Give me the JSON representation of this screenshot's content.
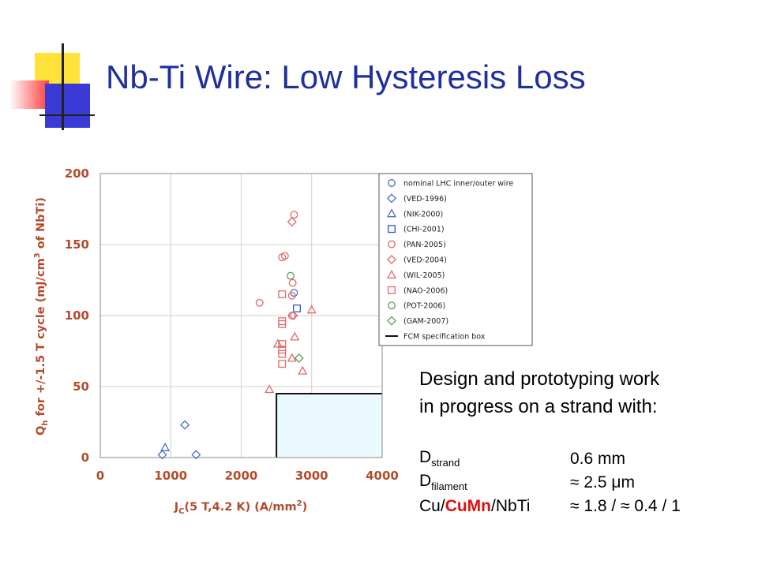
{
  "slide": {
    "title": "Nb-Ti Wire: Low Hysteresis Loss",
    "description": [
      "Design and prototyping work",
      "in progress on a strand with:"
    ],
    "specs": [
      {
        "base": "D",
        "sub": "strand",
        "value": "0.6 mm"
      },
      {
        "base": "D",
        "sub": "filament",
        "value": "≈ 2.5 μm"
      },
      {
        "parts": [
          "Cu/",
          "CuMn",
          "/NbTi"
        ],
        "value": "≈ 1.8 / ≈ 0.4 / 1"
      }
    ],
    "colors": {
      "title": "#1f2f9e",
      "highlight": "#e01010"
    }
  },
  "chart_data": {
    "type": "scatter",
    "ylabel_main": "Q",
    "ylabel_sub": "h",
    "ylabel_mid": " for +/-1.5 T cycle (mJ/cm",
    "ylabel_sup": "3",
    "ylabel_end": " of NbTi)",
    "xlabel_main": "J",
    "xlabel_sub": "C",
    "xlabel_mid": "(5 T,4.2 K) (A/mm",
    "xlabel_sup": "2",
    "xlabel_end": ")",
    "xlim": [
      0,
      4000
    ],
    "ylim": [
      0,
      200
    ],
    "xticks": [
      "0",
      "1000",
      "2000",
      "3000",
      "4000"
    ],
    "yticks": [
      "0",
      "50",
      "100",
      "150",
      "200"
    ],
    "grid": true,
    "legend_position": "top-right",
    "spec_box": {
      "label": "FCM specification box",
      "x_min": 2500,
      "y_max": 45
    },
    "series": [
      {
        "name": "nominal LHC inner/outer wire",
        "marker": "circle",
        "color": "#4a6cc9",
        "points": [
          [
            2750,
            116
          ]
        ]
      },
      {
        "name": "(VED-1996)",
        "marker": "diamond",
        "color": "#4a6cc9",
        "points": [
          [
            1200,
            23
          ],
          [
            880,
            2
          ],
          [
            1360,
            2
          ]
        ]
      },
      {
        "name": "(NIK-2000)",
        "marker": "triangle",
        "color": "#4a6cc9",
        "points": [
          [
            920,
            7
          ]
        ]
      },
      {
        "name": "(CHI-2001)",
        "marker": "square",
        "color": "#3355cc",
        "points": [
          [
            2790,
            105
          ]
        ]
      },
      {
        "name": "(PAN-2005)",
        "marker": "circle",
        "color": "#e06a6a",
        "points": [
          [
            2750,
            171
          ],
          [
            2580,
            141
          ],
          [
            2620,
            142
          ],
          [
            2260,
            109
          ],
          [
            2730,
            123
          ],
          [
            2720,
            114
          ],
          [
            2720,
            100
          ]
        ]
      },
      {
        "name": "(VED-2004)",
        "marker": "diamond",
        "color": "#e06a6a",
        "points": [
          [
            2720,
            166
          ],
          [
            2740,
            100
          ]
        ]
      },
      {
        "name": "(WIL-2005)",
        "marker": "triangle",
        "color": "#e06a6a",
        "points": [
          [
            3000,
            104
          ],
          [
            2760,
            85
          ],
          [
            2520,
            80
          ],
          [
            2720,
            70
          ],
          [
            2870,
            61
          ],
          [
            2400,
            48
          ]
        ]
      },
      {
        "name": "(NAO-2006)",
        "marker": "square",
        "color": "#e06a6a",
        "points": [
          [
            2580,
            115
          ],
          [
            2580,
            96
          ],
          [
            2580,
            94
          ],
          [
            2580,
            80
          ],
          [
            2580,
            76
          ],
          [
            2580,
            73
          ],
          [
            2580,
            66
          ]
        ]
      },
      {
        "name": "(POT-2006)",
        "marker": "circle",
        "color": "#5aa05a",
        "points": [
          [
            2700,
            128
          ]
        ]
      },
      {
        "name": "(GAM-2007)",
        "marker": "diamond",
        "color": "#5aa05a",
        "points": [
          [
            2820,
            70
          ]
        ]
      }
    ]
  }
}
